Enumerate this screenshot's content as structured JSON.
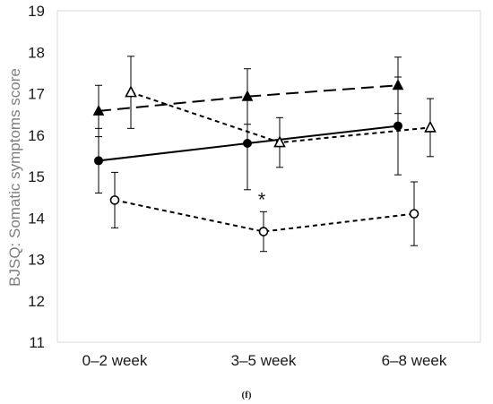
{
  "chart_data": {
    "type": "line",
    "categories": [
      "0–2 week",
      "3–5 week",
      "6–8 week"
    ],
    "ylabel": "BJSQ: Somatic symptoms score",
    "xlabel": "",
    "ylim": [
      11,
      19
    ],
    "yticks": [
      "11",
      "12",
      "13",
      "14",
      "15",
      "16",
      "17",
      "18",
      "19"
    ],
    "caption": "(f)",
    "grid": false,
    "legend": "none",
    "series": [
      {
        "marker": "filled-circle",
        "line": "solid",
        "color": "#000000",
        "values": [
          15.38,
          15.8,
          16.22
        ],
        "err": [
          0.78,
          1.12,
          1.18
        ]
      },
      {
        "marker": "filled-triangle",
        "line": "long-dash",
        "color": "#000000",
        "values": [
          16.58,
          16.93,
          17.2
        ],
        "err": [
          0.62,
          0.67,
          0.68
        ]
      },
      {
        "marker": "open-triangle",
        "line": "short-dash",
        "color": "#000000",
        "values": [
          17.03,
          15.82,
          16.18
        ],
        "err": [
          0.87,
          0.6,
          0.7
        ]
      },
      {
        "marker": "open-circle",
        "line": "short-dash",
        "color": "#000000",
        "values": [
          14.43,
          13.67,
          14.1
        ],
        "err": [
          0.67,
          0.48,
          0.77
        ]
      }
    ],
    "annotations": [
      {
        "text": "*",
        "category": "3–5 week",
        "y": 14.45
      }
    ]
  }
}
